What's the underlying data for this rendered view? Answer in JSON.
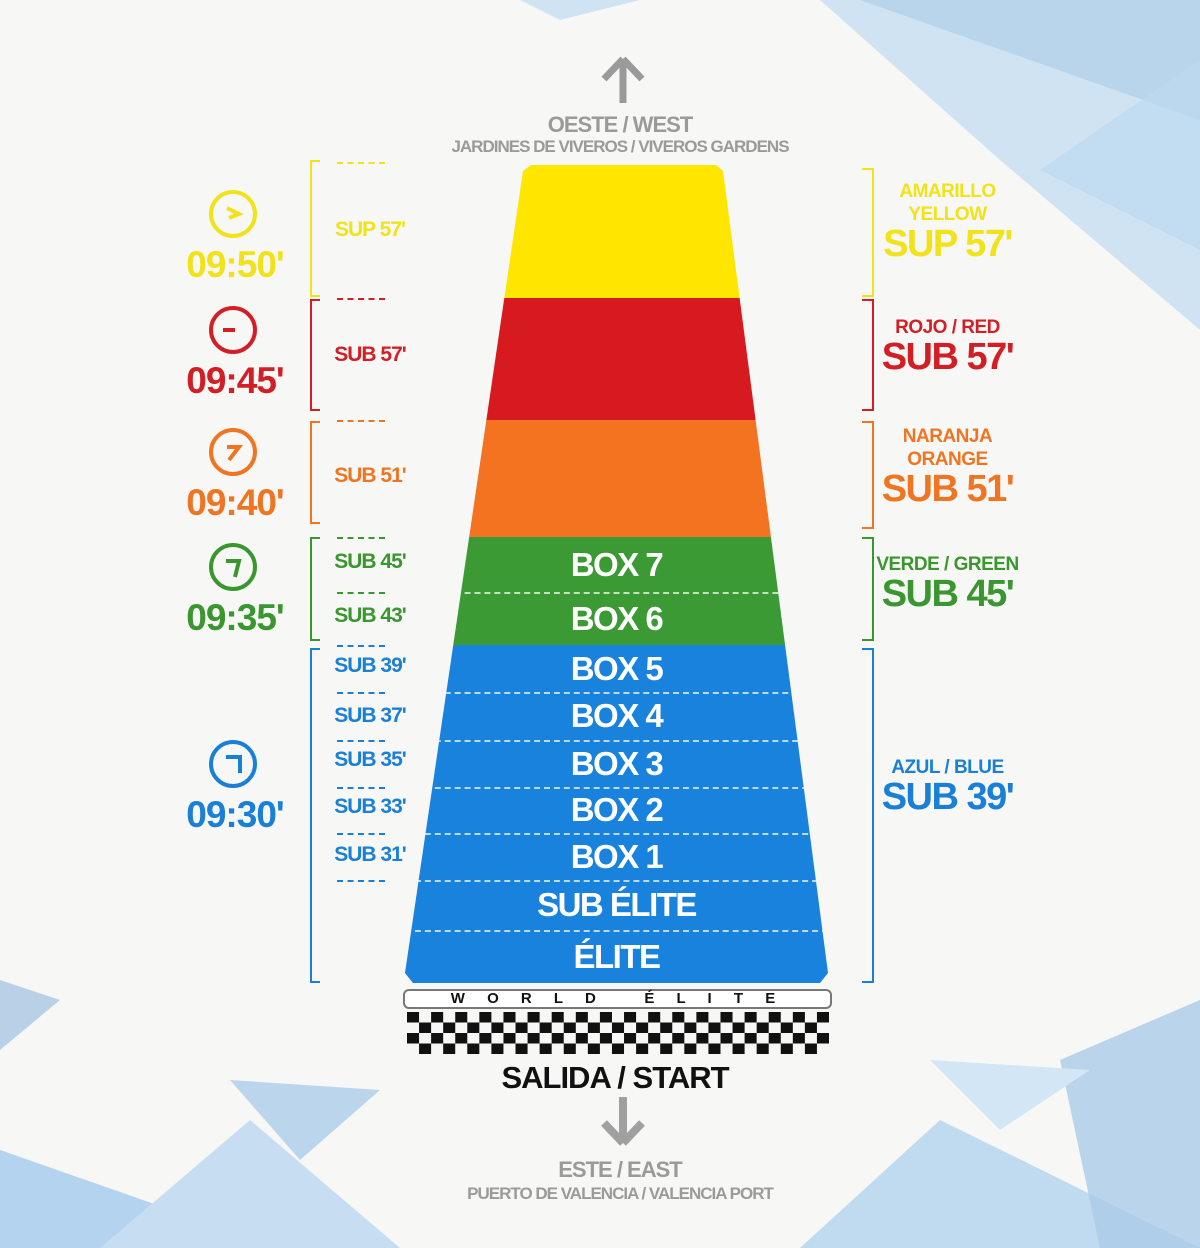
{
  "top": {
    "direction": "OESTE / WEST",
    "place": "JARDINES DE VIVEROS / VIVEROS GARDENS",
    "icon": "arrow-up-icon"
  },
  "bottom": {
    "start": "SALIDA / START",
    "direction": "ESTE / EAST",
    "place": "PUERTO DE VALENCIA / VALENCIA PORT",
    "icon": "arrow-down-icon",
    "start_banner": "W O R L D   É L I T E"
  },
  "waves": [
    {
      "time": "09:50'",
      "color": "#f2e21a",
      "name": "AMARILLO",
      "name2": "YELLOW",
      "mark": "SUP 57'",
      "subs": [
        "SUP 57'"
      ]
    },
    {
      "time": "09:45'",
      "color": "#d21f26",
      "name": "ROJO / RED",
      "name2": "",
      "mark": "SUB 57'",
      "subs": [
        "SUB 57'"
      ]
    },
    {
      "time": "09:40'",
      "color": "#f07522",
      "name": "NARANJA",
      "name2": "ORANGE",
      "mark": "SUB 51'",
      "subs": [
        "SUB 51'"
      ]
    },
    {
      "time": "09:35'",
      "color": "#3a962e",
      "name": "VERDE / GREEN",
      "name2": "",
      "mark": "SUB 45'",
      "subs": [
        "SUB 45'",
        "SUB 43'"
      ]
    },
    {
      "time": "09:30'",
      "color": "#1a7fd6",
      "name": "AZUL / BLUE",
      "name2": "",
      "mark": "SUB 39'",
      "subs": [
        "SUB 39'",
        "SUB 37'",
        "SUB 35'",
        "SUB 33'",
        "SUB 31'"
      ]
    }
  ],
  "boxes": [
    "BOX 7",
    "BOX 6",
    "BOX 5",
    "BOX 4",
    "BOX 3",
    "BOX 2",
    "BOX 1",
    "SUB ÉLITE",
    "ÉLITE"
  ],
  "colors": {
    "band_yellow": "#ffe600",
    "band_red": "#d71920",
    "band_orange": "#f47320",
    "band_green": "#3c9a34",
    "band_blue": "#1982dc"
  }
}
